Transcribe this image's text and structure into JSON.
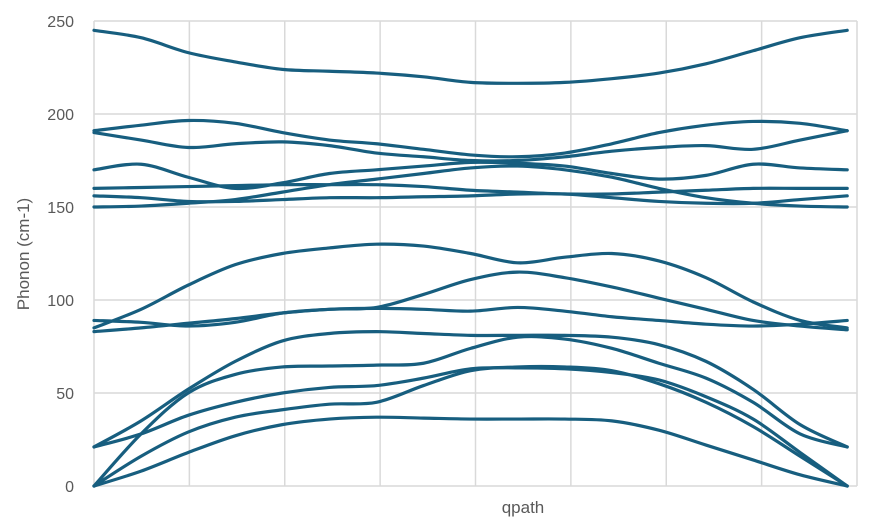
{
  "chart_data": {
    "type": "line",
    "title": "",
    "xlabel": "qpath",
    "ylabel": "Phonon (cm-1)",
    "ylim": [
      0,
      250
    ],
    "yticks": [
      "0",
      "50",
      "100",
      "150",
      "200",
      "250"
    ],
    "xlim": [
      0,
      1.013
    ],
    "grid": true,
    "legend": "none",
    "color": "#175e7f",
    "x": [
      0,
      0.0625,
      0.125,
      0.1875,
      0.25,
      0.3125,
      0.375,
      0.4375,
      0.5,
      0.5625,
      0.625,
      0.6875,
      0.75,
      0.8125,
      0.875,
      0.9375,
      1
    ],
    "series": [
      {
        "values": [
          245,
          241,
          233,
          228,
          224,
          223,
          222,
          220,
          217,
          216.5,
          217,
          219,
          222,
          227,
          234,
          241,
          245
        ]
      },
      {
        "values": [
          191,
          194,
          196.5,
          195,
          190,
          186,
          184,
          181,
          178,
          177,
          179,
          184,
          190,
          194,
          196,
          195,
          191
        ]
      },
      {
        "values": [
          190,
          186,
          182,
          184,
          185,
          183,
          179,
          177,
          175,
          175,
          177,
          180,
          182,
          183,
          181,
          186,
          191
        ]
      },
      {
        "values": [
          170,
          173,
          166,
          160,
          163,
          168,
          170,
          172,
          174,
          173.5,
          172,
          168,
          165,
          167,
          173,
          171,
          170
        ]
      },
      {
        "values": [
          160,
          160.5,
          161,
          161.5,
          162,
          162,
          162,
          161,
          159,
          158,
          157,
          157,
          158,
          159,
          160,
          160,
          160
        ]
      },
      {
        "values": [
          156,
          155,
          153,
          153,
          154,
          155,
          155,
          155.5,
          156,
          157,
          157,
          155,
          153,
          152,
          152,
          154,
          156
        ]
      },
      {
        "values": [
          150,
          150.5,
          152,
          154,
          158,
          162,
          165,
          168,
          171,
          172,
          170,
          166,
          160,
          155,
          152,
          150.5,
          150
        ]
      },
      {
        "values": [
          85,
          95,
          108,
          119,
          125,
          128,
          130,
          129,
          125,
          120,
          123,
          125,
          121,
          112,
          99,
          89,
          85
        ]
      },
      {
        "values": [
          89,
          88,
          86,
          88,
          93,
          95,
          96,
          103,
          111,
          115,
          112,
          107,
          101,
          95,
          89,
          86,
          84
        ]
      },
      {
        "values": [
          83,
          85,
          87.5,
          90,
          93,
          95,
          95.5,
          95,
          94,
          96,
          94,
          91,
          89,
          87,
          86,
          87,
          89
        ]
      },
      {
        "values": [
          21,
          35,
          52,
          67,
          78,
          82,
          83,
          82,
          81,
          81,
          81,
          80,
          76,
          67,
          52,
          33,
          21
        ]
      },
      {
        "values": [
          0,
          28,
          50,
          60,
          64,
          64.5,
          65,
          66,
          74,
          80,
          79,
          74,
          66,
          58,
          45,
          28,
          21
        ]
      },
      {
        "values": [
          21,
          28,
          38,
          45,
          50,
          53,
          54,
          58,
          63,
          63.5,
          63,
          61,
          57,
          48,
          36,
          18,
          0
        ]
      },
      {
        "values": [
          0,
          16,
          29,
          37,
          41,
          44,
          45,
          54,
          62,
          64,
          64,
          62,
          55,
          45,
          32,
          16,
          0
        ]
      },
      {
        "values": [
          0,
          8,
          18,
          27,
          33,
          36,
          37,
          36.5,
          36,
          36,
          36,
          35,
          30,
          22,
          14,
          6,
          0
        ]
      }
    ]
  }
}
